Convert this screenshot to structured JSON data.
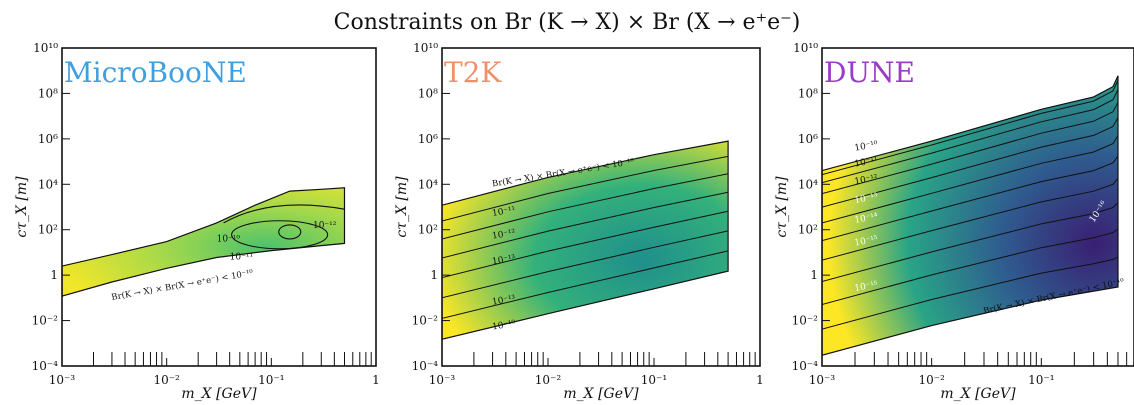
{
  "figure": {
    "suptitle": "Constraints on Br (K → X) × Br (X → e⁺e⁻)"
  },
  "chart_data": [
    {
      "type": "area",
      "name": "MicroBooNE",
      "title": "MicroBooNE",
      "title_color": "#3f9fdf",
      "xlabel": "m_X [GeV]",
      "ylabel": "cτ_X [m]",
      "xscale": "log",
      "yscale": "log",
      "xlim": [
        0.001,
        1
      ],
      "ylim": [
        0.0001,
        10000000000
      ],
      "x_ticks": [
        "10⁻³",
        "10⁻²",
        "10⁻¹",
        "1"
      ],
      "y_ticks": [
        "10⁻⁴",
        "10⁻²",
        "1",
        "10²",
        "10⁴",
        "10⁶",
        "10⁸",
        "10¹⁰"
      ],
      "contour_labels": [
        "10⁻¹⁰",
        "10⁻¹¹",
        "10⁻¹²",
        "Br(K → X) × Br(X → e⁺e⁻) < 10⁻¹⁰"
      ],
      "region": {
        "upper": [
          [
            0.001,
            2.5
          ],
          [
            0.003,
            8
          ],
          [
            0.01,
            30
          ],
          [
            0.03,
            200
          ],
          [
            0.07,
            1200
          ],
          [
            0.15,
            5000
          ],
          [
            0.3,
            6000
          ],
          [
            0.5,
            7000
          ]
        ],
        "lower": [
          [
            0.5,
            25
          ],
          [
            0.3,
            20
          ],
          [
            0.1,
            12
          ],
          [
            0.03,
            6
          ],
          [
            0.01,
            2
          ],
          [
            0.003,
            0.5
          ],
          [
            0.001,
            0.12
          ]
        ]
      }
    },
    {
      "type": "area",
      "name": "T2K",
      "title": "T2K",
      "title_color": "#f0906a",
      "xlabel": "m_X [GeV]",
      "ylabel": "cτ_X [m]",
      "xscale": "log",
      "yscale": "log",
      "xlim": [
        0.001,
        1
      ],
      "ylim": [
        0.0001,
        10000000000
      ],
      "x_ticks": [
        "10⁻³",
        "10⁻²",
        "10⁻¹",
        "1"
      ],
      "y_ticks": [
        "10⁻⁴",
        "10⁻²",
        "1",
        "10²",
        "10⁴",
        "10⁶",
        "10⁸",
        "10¹⁰"
      ],
      "contour_labels": [
        "Br(K → X) × Br(X → e⁺e⁻) < 10⁻¹⁰",
        "10⁻¹¹",
        "10⁻¹²",
        "10⁻¹³",
        "10⁻¹³",
        "10⁻¹⁰"
      ],
      "region": {
        "upper": [
          [
            0.001,
            1200
          ],
          [
            0.01,
            20000
          ],
          [
            0.1,
            200000
          ],
          [
            0.5,
            800000
          ]
        ],
        "lower": [
          [
            0.5,
            1.5
          ],
          [
            0.1,
            0.25
          ],
          [
            0.01,
            0.02
          ],
          [
            0.001,
            0.0015
          ]
        ]
      }
    },
    {
      "type": "area",
      "name": "DUNE",
      "title": "DUNE",
      "title_color": "#9a3cc8",
      "xlabel": "m_X [GeV]",
      "ylabel": "cτ_X [m]",
      "xscale": "log",
      "yscale": "log",
      "xlim": [
        0.001,
        0.7
      ],
      "ylim": [
        0.0001,
        10000000000
      ],
      "x_ticks": [
        "10⁻³",
        "10⁻²",
        "10⁻¹"
      ],
      "y_ticks": [
        "10⁻⁴",
        "10⁻²",
        "1",
        "10²",
        "10⁴",
        "10⁶",
        "10⁸",
        "10¹⁰"
      ],
      "contour_labels": [
        "10⁻¹⁰",
        "10⁻¹¹",
        "10⁻¹²",
        "10⁻¹³",
        "10⁻¹⁴",
        "10⁻¹⁵",
        "10⁻¹⁵",
        "10⁻¹⁶",
        "Br(K → X) × Br(X → e⁺e⁻) < 10⁻¹⁰"
      ],
      "region": {
        "upper": [
          [
            0.001,
            40000
          ],
          [
            0.01,
            800000
          ],
          [
            0.1,
            20000000
          ],
          [
            0.3,
            70000000
          ],
          [
            0.45,
            200000000
          ],
          [
            0.5,
            600000000
          ]
        ],
        "lower": [
          [
            0.5,
            0.3
          ],
          [
            0.1,
            0.08
          ],
          [
            0.01,
            0.006
          ],
          [
            0.001,
            0.0003
          ]
        ]
      }
    }
  ]
}
